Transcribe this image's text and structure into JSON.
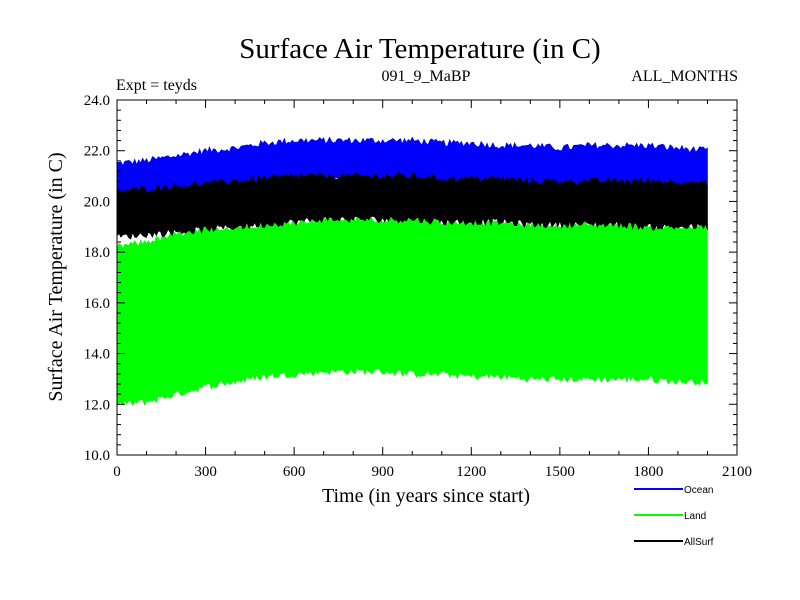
{
  "chart_data": {
    "type": "area",
    "title": "Surface Air Temperature (in C)",
    "header_left": "Expt = teyds",
    "header_center": "091_9_MaBP",
    "header_right": "ALL_MONTHS",
    "xlabel": "Time (in years since start)",
    "ylabel": "Surface Air Temperature (in C)",
    "xlim": [
      0,
      2100
    ],
    "ylim": [
      10.0,
      24.0
    ],
    "x_ticks": [
      0,
      300,
      600,
      900,
      1200,
      1500,
      1800,
      2100
    ],
    "x_tick_labels": [
      "0",
      "300",
      "600",
      "900",
      "1200",
      "1500",
      "1800",
      "2100"
    ],
    "y_ticks": [
      10,
      12,
      14,
      16,
      18,
      20,
      22,
      24
    ],
    "y_tick_labels": [
      "10.0",
      "12.0",
      "14.0",
      "16.0",
      "18.0",
      "20.0",
      "22.0",
      "24.0"
    ],
    "legend_position": "bottom-right",
    "note": "Each series is a dense monthly time series over 0-2000 years; shown as its min-max envelope.",
    "series": [
      {
        "name": "Ocean",
        "color": "#0000ff",
        "x": [
          0,
          100,
          200,
          300,
          400,
          500,
          600,
          700,
          800,
          900,
          1000,
          1100,
          1200,
          1300,
          1400,
          1500,
          1600,
          1700,
          1800,
          1900,
          2000
        ],
        "upper": [
          21.5,
          21.6,
          21.8,
          22.0,
          22.1,
          22.3,
          22.4,
          22.4,
          22.4,
          22.4,
          22.4,
          22.3,
          22.3,
          22.2,
          22.2,
          22.1,
          22.2,
          22.2,
          22.2,
          22.1,
          22.0
        ],
        "lower": [
          20.3,
          20.3,
          20.4,
          20.5,
          20.6,
          20.7,
          20.8,
          20.8,
          20.8,
          20.8,
          20.8,
          20.7,
          20.7,
          20.7,
          20.6,
          20.6,
          20.6,
          20.6,
          20.6,
          20.5,
          20.5
        ]
      },
      {
        "name": "Land",
        "color": "#00ff00",
        "x": [
          0,
          100,
          200,
          300,
          400,
          500,
          600,
          700,
          800,
          900,
          1000,
          1100,
          1200,
          1300,
          1400,
          1500,
          1600,
          1700,
          1800,
          1900,
          2000
        ],
        "upper": [
          18.2,
          18.4,
          18.7,
          18.9,
          19.0,
          19.1,
          19.2,
          19.3,
          19.3,
          19.3,
          19.3,
          19.2,
          19.2,
          19.2,
          19.1,
          19.1,
          19.1,
          19.1,
          19.1,
          19.0,
          19.0
        ],
        "lower": [
          12.0,
          12.1,
          12.4,
          12.7,
          12.9,
          13.1,
          13.2,
          13.3,
          13.3,
          13.3,
          13.2,
          13.2,
          13.1,
          13.1,
          13.0,
          13.0,
          13.0,
          13.0,
          13.0,
          12.9,
          12.9
        ]
      },
      {
        "name": "AllSurf",
        "color": "#000000",
        "x": [
          0,
          100,
          200,
          300,
          400,
          500,
          600,
          700,
          800,
          900,
          1000,
          1100,
          1200,
          1300,
          1400,
          1500,
          1600,
          1700,
          1800,
          1900,
          2000
        ],
        "upper": [
          20.4,
          20.5,
          20.6,
          20.7,
          20.8,
          20.9,
          21.0,
          21.0,
          21.0,
          21.0,
          21.0,
          20.9,
          20.9,
          20.9,
          20.8,
          20.8,
          20.8,
          20.8,
          20.8,
          20.8,
          20.7
        ],
        "lower": [
          18.6,
          18.7,
          18.8,
          18.9,
          19.0,
          19.1,
          19.2,
          19.3,
          19.3,
          19.3,
          19.3,
          19.2,
          19.2,
          19.2,
          19.1,
          19.1,
          19.1,
          19.1,
          19.0,
          19.0,
          19.0
        ]
      }
    ]
  }
}
